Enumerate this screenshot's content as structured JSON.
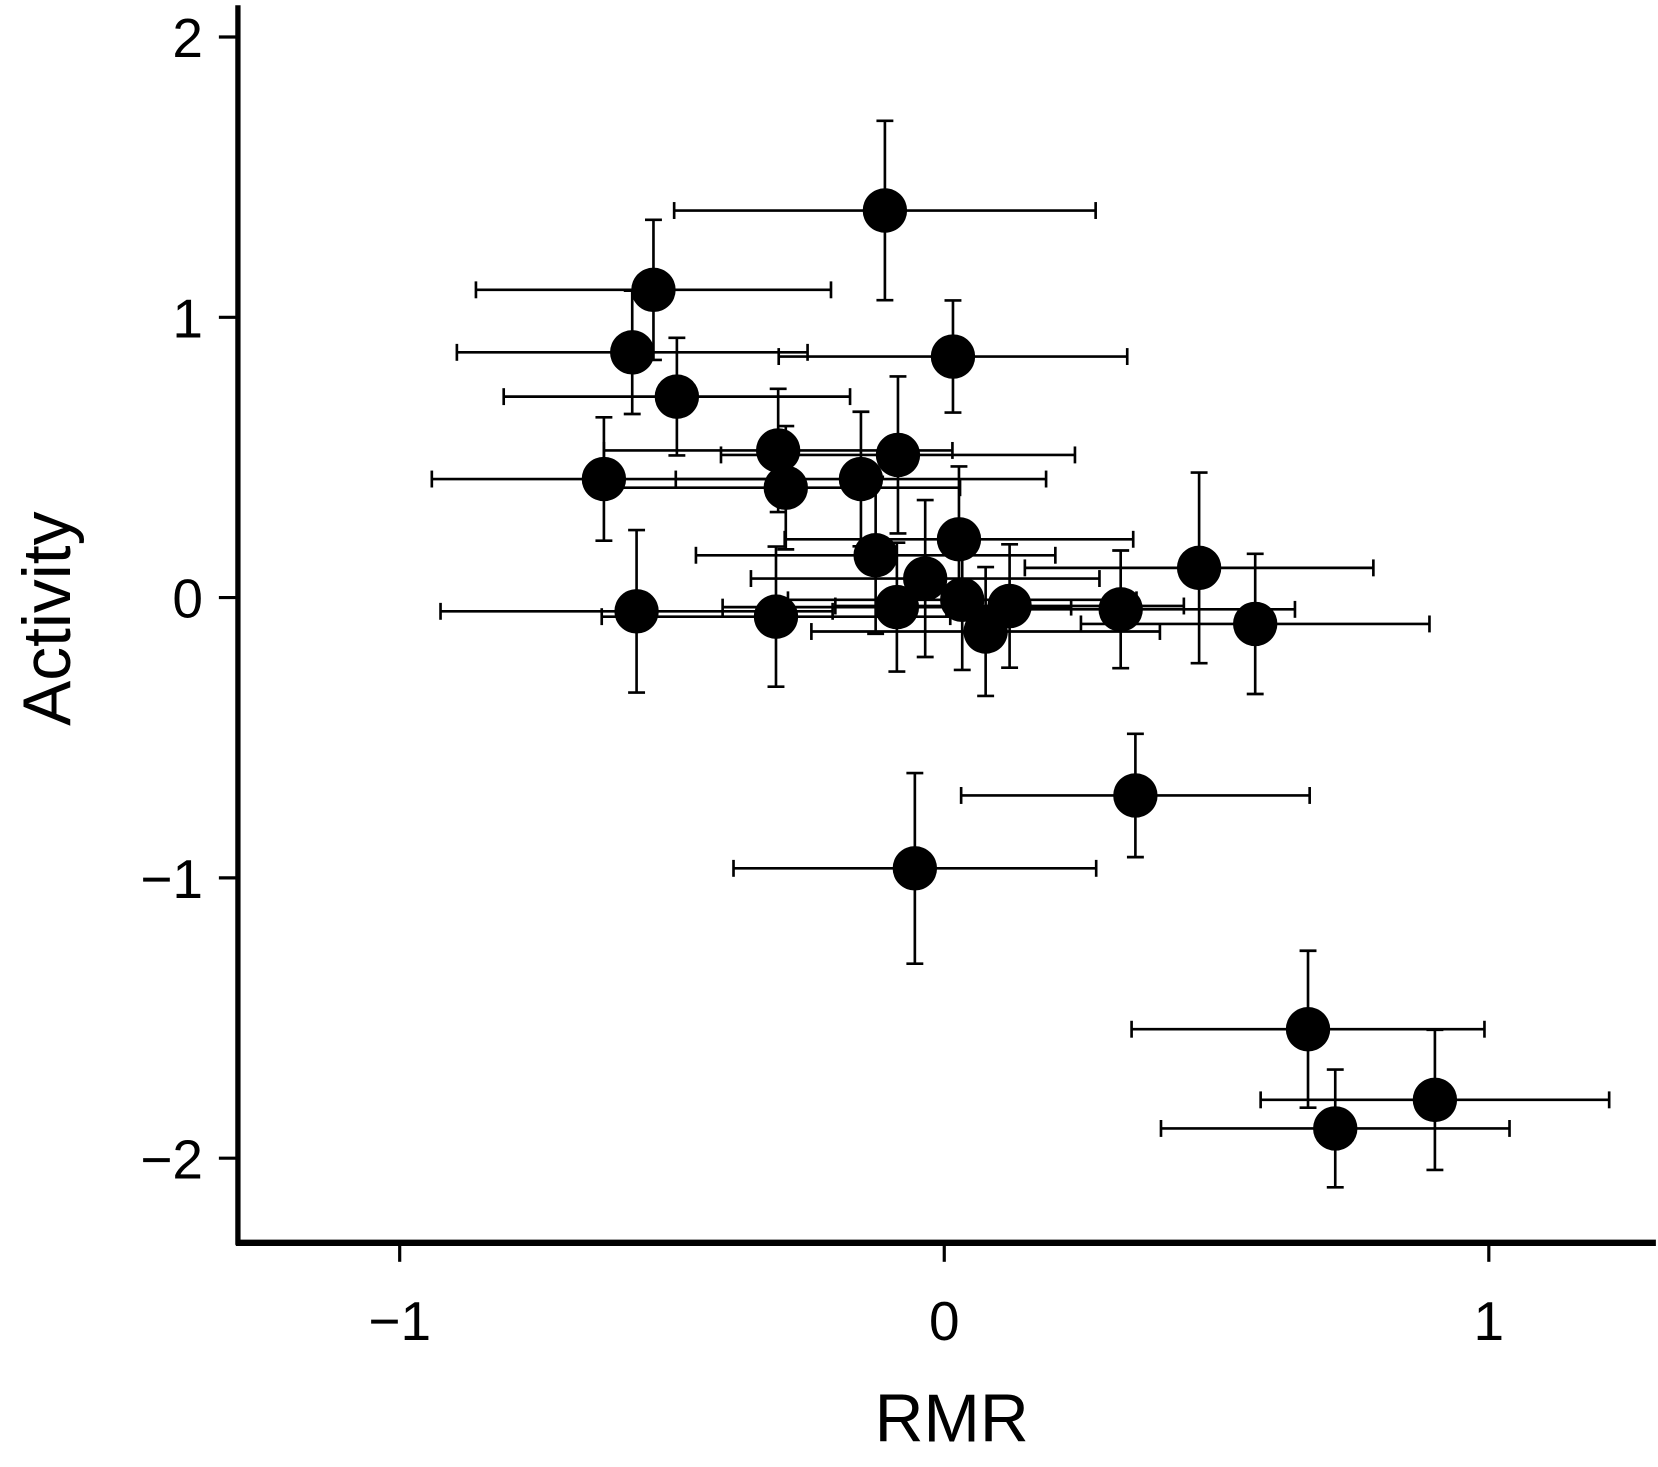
{
  "chart_data": {
    "type": "scatter",
    "title": "",
    "xlabel": "RMR",
    "ylabel": "Activity",
    "xlim": [
      -1.3,
      1.3
    ],
    "ylim": [
      -2.3,
      2.13
    ],
    "xticks": [
      -1,
      0,
      1
    ],
    "yticks": [
      -2,
      -1,
      0,
      1,
      2
    ],
    "xtick_labels": [
      "−1",
      "0",
      "1"
    ],
    "ytick_labels": [
      "−2",
      "−1",
      "0",
      "1",
      "2"
    ],
    "grid": false,
    "legend": "none",
    "marker_color": "#000000",
    "points": [
      {
        "x": -0.109,
        "y": 1.381,
        "xerr": 0.387,
        "yerr": 0.32
      },
      {
        "x": -0.534,
        "y": 1.098,
        "xerr": 0.326,
        "yerr": 0.25
      },
      {
        "x": -0.573,
        "y": 0.875,
        "xerr": 0.322,
        "yerr": 0.22
      },
      {
        "x": 0.016,
        "y": 0.86,
        "xerr": 0.32,
        "yerr": 0.2
      },
      {
        "x": -0.491,
        "y": 0.717,
        "xerr": 0.318,
        "yerr": 0.21
      },
      {
        "x": -0.305,
        "y": 0.525,
        "xerr": 0.32,
        "yerr": 0.22
      },
      {
        "x": -0.085,
        "y": 0.509,
        "xerr": 0.325,
        "yerr": 0.28
      },
      {
        "x": -0.625,
        "y": 0.423,
        "xerr": 0.316,
        "yerr": 0.22
      },
      {
        "x": -0.291,
        "y": 0.392,
        "xerr": 0.32,
        "yerr": 0.22
      },
      {
        "x": -0.153,
        "y": 0.423,
        "xerr": 0.34,
        "yerr": 0.24
      },
      {
        "x": 0.027,
        "y": 0.208,
        "xerr": 0.32,
        "yerr": 0.26
      },
      {
        "x": -0.126,
        "y": 0.151,
        "xerr": 0.33,
        "yerr": 0.28
      },
      {
        "x": -0.035,
        "y": 0.068,
        "xerr": 0.32,
        "yerr": 0.28
      },
      {
        "x": 0.468,
        "y": 0.106,
        "xerr": 0.32,
        "yerr": 0.34
      },
      {
        "x": -0.565,
        "y": -0.049,
        "xerr": 0.36,
        "yerr": 0.29
      },
      {
        "x": -0.309,
        "y": -0.068,
        "xerr": 0.32,
        "yerr": 0.25
      },
      {
        "x": -0.087,
        "y": -0.034,
        "xerr": 0.32,
        "yerr": 0.23
      },
      {
        "x": 0.033,
        "y": -0.008,
        "xerr": 0.32,
        "yerr": 0.25
      },
      {
        "x": 0.076,
        "y": -0.121,
        "xerr": 0.32,
        "yerr": 0.23
      },
      {
        "x": 0.12,
        "y": -0.03,
        "xerr": 0.32,
        "yerr": 0.22
      },
      {
        "x": 0.324,
        "y": -0.042,
        "xerr": 0.32,
        "yerr": 0.21
      },
      {
        "x": 0.571,
        "y": -0.094,
        "xerr": 0.32,
        "yerr": 0.25
      },
      {
        "x": 0.351,
        "y": -0.706,
        "xerr": 0.32,
        "yerr": 0.22
      },
      {
        "x": -0.054,
        "y": -0.966,
        "xerr": 0.333,
        "yerr": 0.34
      },
      {
        "x": 0.668,
        "y": -1.54,
        "xerr": 0.324,
        "yerr": 0.28
      },
      {
        "x": 0.901,
        "y": -1.792,
        "xerr": 0.32,
        "yerr": 0.25
      },
      {
        "x": 0.718,
        "y": -1.894,
        "xerr": 0.32,
        "yerr": 0.21
      }
    ]
  }
}
